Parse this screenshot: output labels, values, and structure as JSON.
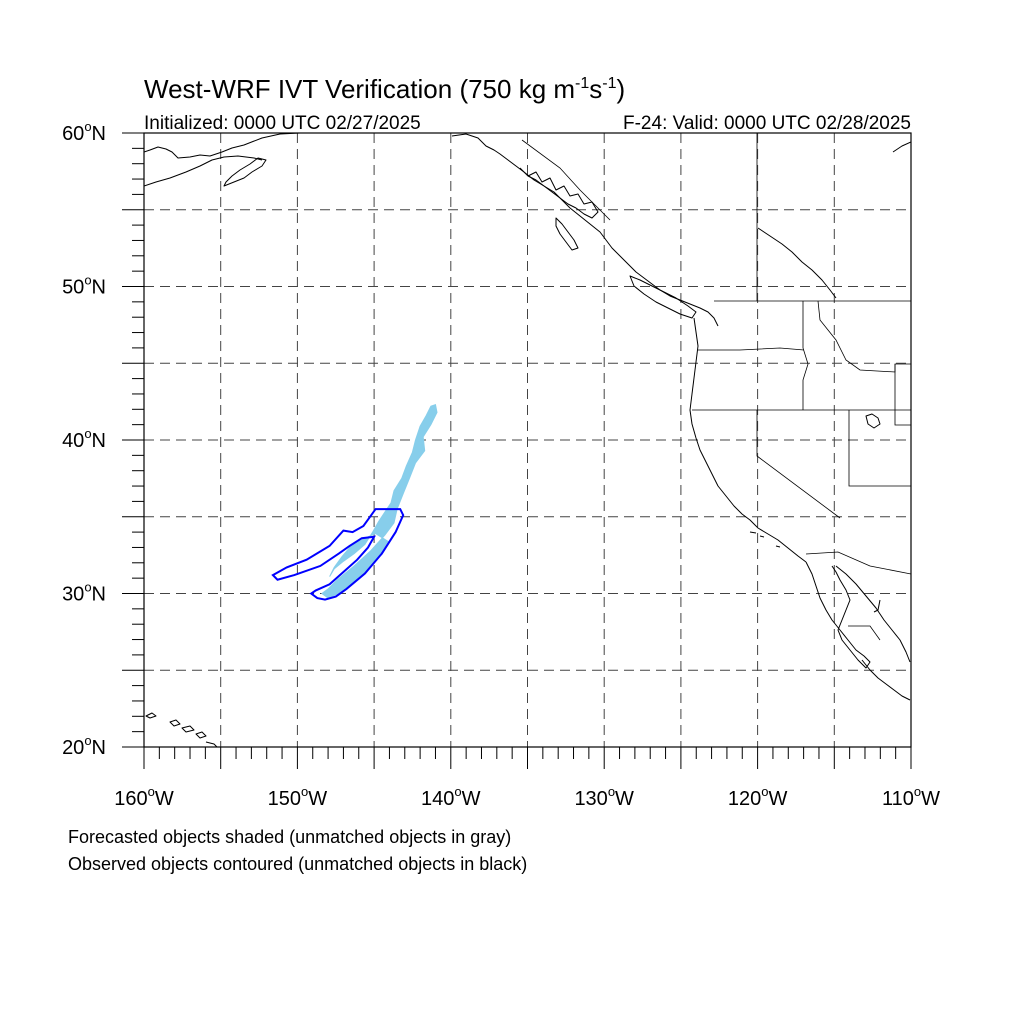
{
  "title_main": "West-WRF IVT Verification (750 kg m",
  "title_unit_m_exp": "-1",
  "title_unit_s": "s",
  "title_unit_s_exp": "-1",
  "title_close": ")",
  "initialized": "Initialized: 0000 UTC 02/27/2025",
  "valid": "F-24: Valid: 0000 UTC 02/28/2025",
  "caption_forecast": "Forecasted objects shaded (unmatched objects in gray)",
  "caption_observed": "Observed objects contoured (unmatched objects in black)",
  "colors": {
    "forecast_fill": "#87ceeb",
    "observed_contour": "#0000ff",
    "grid": "#444444"
  },
  "chart_data": {
    "type": "map",
    "projection": "cylindrical-equidistant",
    "lon_range": [
      -160,
      -110
    ],
    "lat_range": [
      20,
      60
    ],
    "grid_spacing_deg": 5,
    "grid_style": "dashed",
    "x_ticks": [
      {
        "lon": -160,
        "label": "160",
        "suffix": "W"
      },
      {
        "lon": -150,
        "label": "150",
        "suffix": "W"
      },
      {
        "lon": -140,
        "label": "140",
        "suffix": "W"
      },
      {
        "lon": -130,
        "label": "130",
        "suffix": "W"
      },
      {
        "lon": -120,
        "label": "120",
        "suffix": "W"
      },
      {
        "lon": -110,
        "label": "110",
        "suffix": "W"
      }
    ],
    "y_ticks": [
      {
        "lat": 60,
        "label": "60",
        "suffix": "N"
      },
      {
        "lat": 50,
        "label": "50",
        "suffix": "N"
      },
      {
        "lat": 40,
        "label": "40",
        "suffix": "N"
      },
      {
        "lat": 30,
        "label": "30",
        "suffix": "N"
      },
      {
        "lat": 20,
        "label": "20",
        "suffix": "N"
      }
    ],
    "forecast_object": {
      "name": "forecast-ivt-object",
      "style": "shaded",
      "polygon_lonlat": [
        [
          -141.0,
          42.3
        ],
        [
          -140.9,
          41.8
        ],
        [
          -141.3,
          41.0
        ],
        [
          -141.8,
          40.2
        ],
        [
          -141.7,
          39.3
        ],
        [
          -142.3,
          38.5
        ],
        [
          -142.7,
          37.5
        ],
        [
          -143.1,
          36.5
        ],
        [
          -143.5,
          35.5
        ],
        [
          -143.7,
          34.6
        ],
        [
          -144.3,
          33.8
        ],
        [
          -145.2,
          32.8
        ],
        [
          -146.3,
          31.8
        ],
        [
          -147.4,
          30.9
        ],
        [
          -148.0,
          30.3
        ],
        [
          -148.4,
          30.0
        ],
        [
          -148.0,
          29.7
        ],
        [
          -147.1,
          30.1
        ],
        [
          -146.2,
          30.8
        ],
        [
          -145.3,
          31.7
        ],
        [
          -144.6,
          32.6
        ],
        [
          -144.1,
          33.4
        ],
        [
          -144.9,
          33.9
        ],
        [
          -145.6,
          33.6
        ],
        [
          -146.5,
          33.1
        ],
        [
          -147.1,
          32.4
        ],
        [
          -147.6,
          31.7
        ],
        [
          -147.9,
          31.1
        ],
        [
          -147.6,
          31.6
        ],
        [
          -147.0,
          32.1
        ],
        [
          -146.3,
          32.6
        ],
        [
          -145.6,
          33.2
        ],
        [
          -145.1,
          34.0
        ],
        [
          -144.7,
          34.7
        ],
        [
          -144.3,
          35.3
        ],
        [
          -143.9,
          35.9
        ],
        [
          -143.7,
          36.7
        ],
        [
          -143.2,
          37.5
        ],
        [
          -142.9,
          38.3
        ],
        [
          -142.5,
          39.2
        ],
        [
          -142.3,
          40.0
        ],
        [
          -142.0,
          40.9
        ],
        [
          -141.6,
          41.6
        ],
        [
          -141.3,
          42.2
        ]
      ]
    },
    "observed_object": {
      "name": "observed-ivt-contour",
      "style": "contour",
      "polygon_lonlat": [
        [
          -144.9,
          35.5
        ],
        [
          -143.3,
          35.5
        ],
        [
          -143.1,
          35.1
        ],
        [
          -143.6,
          34.0
        ],
        [
          -144.5,
          32.6
        ],
        [
          -145.6,
          31.3
        ],
        [
          -146.8,
          30.3
        ],
        [
          -147.5,
          29.8
        ],
        [
          -148.2,
          29.6
        ],
        [
          -148.7,
          29.7
        ],
        [
          -149.1,
          30.0
        ],
        [
          -148.8,
          30.2
        ],
        [
          -147.9,
          30.6
        ],
        [
          -147.0,
          31.4
        ],
        [
          -146.1,
          32.2
        ],
        [
          -145.4,
          33.0
        ],
        [
          -145.0,
          33.7
        ],
        [
          -145.8,
          33.6
        ],
        [
          -146.6,
          33.1
        ],
        [
          -147.3,
          32.6
        ],
        [
          -148.5,
          31.8
        ],
        [
          -150.2,
          31.2
        ],
        [
          -151.3,
          30.9
        ],
        [
          -151.6,
          31.2
        ],
        [
          -150.7,
          31.7
        ],
        [
          -149.4,
          32.2
        ],
        [
          -147.9,
          33.1
        ],
        [
          -147.0,
          34.1
        ],
        [
          -146.4,
          34.0
        ],
        [
          -145.7,
          34.4
        ]
      ]
    }
  }
}
